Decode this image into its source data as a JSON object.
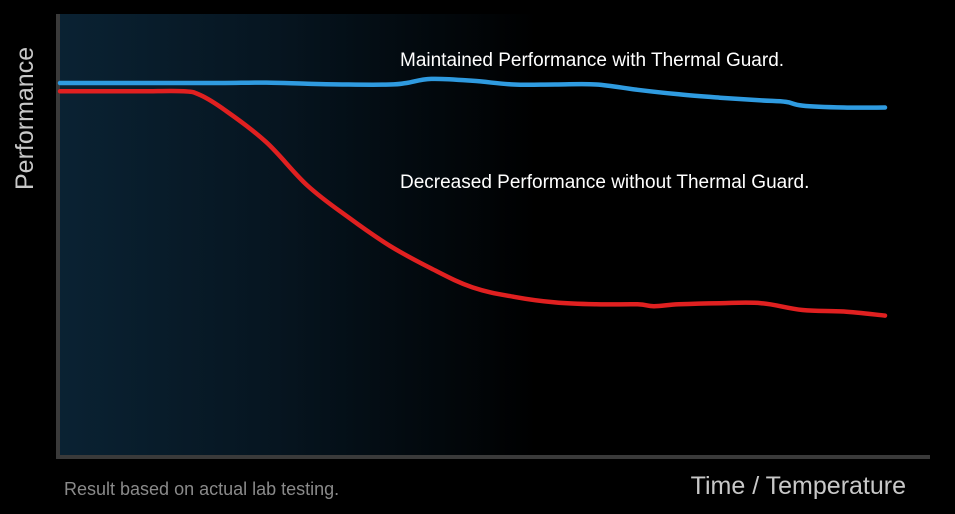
{
  "chart_data": {
    "type": "line",
    "title": "",
    "xlabel": "Time / Temperature",
    "ylabel": "Performance",
    "footnote": "Result based on actual lab testing.",
    "grid": false,
    "legend": "inline-labels",
    "xlim": [
      0,
      100
    ],
    "ylim": [
      0,
      100
    ],
    "colors": {
      "background": "#000000",
      "plot_gradient_start": "#0a2233",
      "plot_gradient_end": "#000000",
      "axis": "#3a3a3a",
      "with_guard": "#2f9be0",
      "without_guard": "#e02020"
    },
    "series": [
      {
        "name": "Maintained Performance with Thermal Guard.",
        "color": "#2f9be0",
        "x": [
          0,
          5,
          10,
          15,
          20,
          25,
          30,
          35,
          40,
          42,
          45,
          50,
          55,
          60,
          65,
          70,
          75,
          80,
          85,
          88,
          90,
          95,
          100
        ],
        "y": [
          99.2,
          99.2,
          99.2,
          99.2,
          99.2,
          99.3,
          99.0,
          98.8,
          98.8,
          99.2,
          100.3,
          99.8,
          98.8,
          98.8,
          98.8,
          97.4,
          96.2,
          95.3,
          94.6,
          94.2,
          93.2,
          92.7,
          92.7
        ]
      },
      {
        "name": "Decreased Performance without Thermal Guard.",
        "color": "#e02020",
        "x": [
          0,
          5,
          10,
          15,
          17,
          20,
          25,
          30,
          35,
          40,
          45,
          50,
          55,
          60,
          65,
          70,
          72,
          75,
          80,
          85,
          90,
          95,
          100
        ],
        "y": [
          97.0,
          97.0,
          97.0,
          97.0,
          96.0,
          92.0,
          83.5,
          72.0,
          63.5,
          56.0,
          50.0,
          45.0,
          42.5,
          41.0,
          40.5,
          40.5,
          40.0,
          40.5,
          40.8,
          40.8,
          39.0,
          38.6,
          37.5
        ]
      }
    ]
  }
}
